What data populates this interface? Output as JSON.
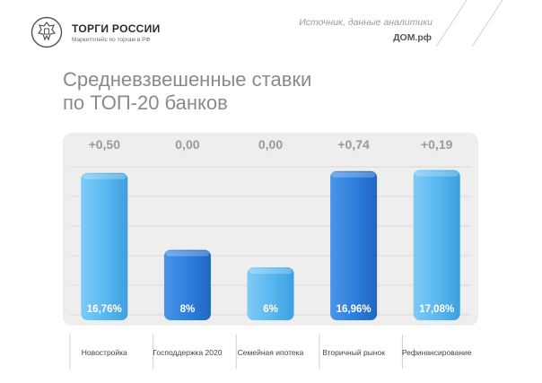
{
  "brand": {
    "title": "ТОРГИ РОССИИ",
    "subtitle": "Маркетплейс по торгам в РФ"
  },
  "source": {
    "label": "Источник, данные аналитики",
    "name": "ДОМ.рф"
  },
  "title_lines": [
    "Средневзвешенные ставки",
    "по ТОП-20 банков"
  ],
  "colors": {
    "light_bar": "#5bb8f0",
    "dark_bar": "#2f7fdd",
    "panel": "#eeeeee"
  },
  "chart_data": {
    "type": "bar",
    "title": "Средневзвешенные ставки по ТОП-20 банков",
    "categories": [
      "Новостройка",
      "Господдержка 2020",
      "Семейная ипотека",
      "Вторичный рынок",
      "Рефинансирование"
    ],
    "values": [
      16.76,
      8,
      6,
      16.96,
      17.08
    ],
    "value_labels": [
      "16,76%",
      "8%",
      "6%",
      "16,96%",
      "17,08%"
    ],
    "changes": [
      "+0,50",
      "0,00",
      "0,00",
      "+0,74",
      "+0,19"
    ],
    "bar_tone": [
      "light",
      "dark",
      "light",
      "dark",
      "light"
    ],
    "ylim": [
      0,
      20
    ],
    "grid": true,
    "xlabel": "",
    "ylabel": ""
  }
}
